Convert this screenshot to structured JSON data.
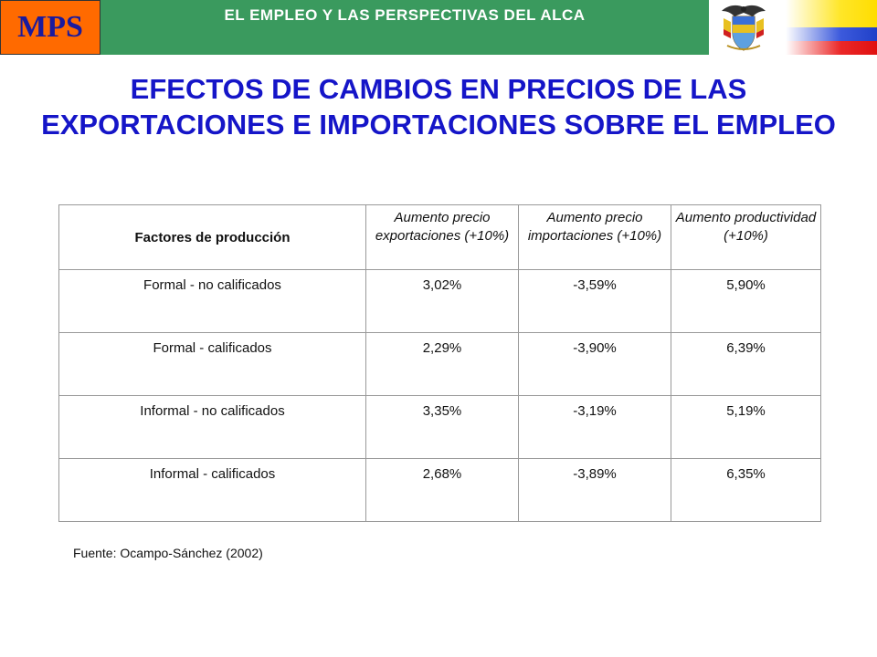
{
  "header": {
    "logo_text": "MPS",
    "title": "EL EMPLEO Y LAS PERSPECTIVAS DEL ALCA",
    "colors": {
      "band": "#3a9a5e",
      "logo_bg": "#ff6a00",
      "logo_text": "#1a1a9e"
    },
    "icons": [
      "coat-of-arms-icon",
      "colombia-flag-icon"
    ]
  },
  "slide": {
    "title": "EFECTOS DE CAMBIOS EN PRECIOS DE LAS EXPORTACIONES E IMPORTACIONES SOBRE EL EMPLEO",
    "title_color": "#1515c8"
  },
  "table": {
    "headers": [
      "Factores de producción",
      "Aumento precio exportaciones (+10%)",
      "Aumento precio importaciones (+10%)",
      "Aumento productividad (+10%)"
    ],
    "rows": [
      {
        "factor": "Formal - no calificados",
        "exportaciones": "3,02%",
        "importaciones": "-3,59%",
        "productividad": "5,90%"
      },
      {
        "factor": "Formal - calificados",
        "exportaciones": "2,29%",
        "importaciones": "-3,90%",
        "productividad": "6,39%"
      },
      {
        "factor": "Informal - no calificados",
        "exportaciones": "3,35%",
        "importaciones": "-3,19%",
        "productividad": "5,19%"
      },
      {
        "factor": "Informal - calificados",
        "exportaciones": "2,68%",
        "importaciones": "-3,89%",
        "productividad": "6,35%"
      }
    ]
  },
  "source": "Fuente: Ocampo-Sánchez (2002)"
}
